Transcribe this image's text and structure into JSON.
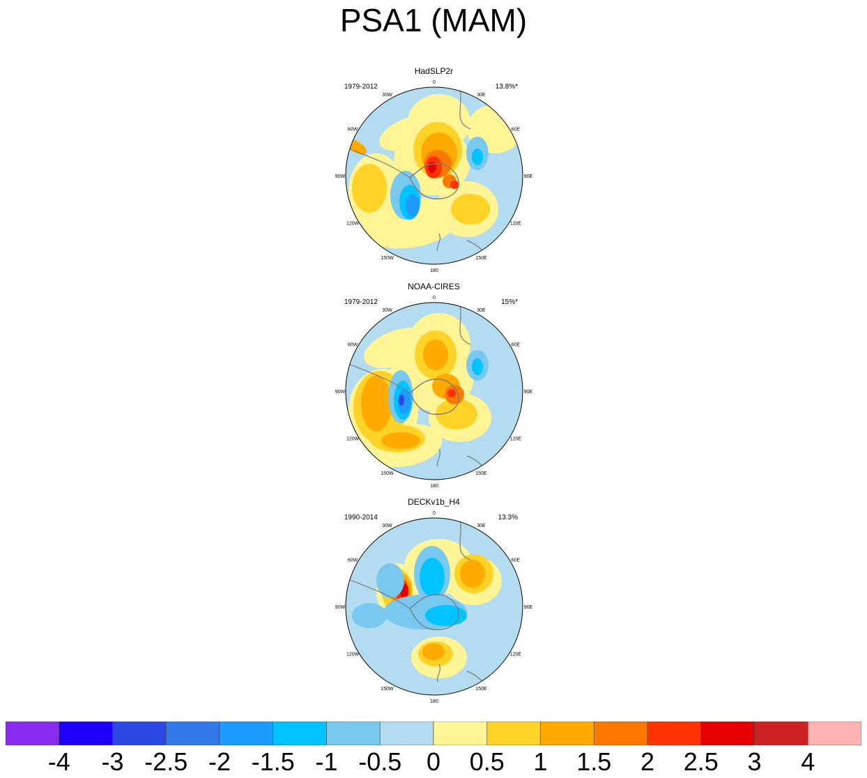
{
  "title": "PSA1 (MAM)",
  "chart_data": {
    "type": "contour-map",
    "projection": "south polar stereographic",
    "panels": [
      {
        "name": "HadSLP2r",
        "period": "1979-2012",
        "variance": "13.8%*"
      },
      {
        "name": "NOAA-CIRES",
        "period": "1979-2012",
        "variance": "15%*"
      },
      {
        "name": "DECKv1b_H4",
        "period": "1990-2014",
        "variance": "13.3%"
      }
    ],
    "longitude_labels": [
      "0",
      "30E",
      "60E",
      "90E",
      "120E",
      "150E",
      "180",
      "150W",
      "120W",
      "90W",
      "60W",
      "30W"
    ],
    "colorbar": {
      "colors": [
        "#8a2cf0",
        "#1e00fa",
        "#2c48e4",
        "#3278ea",
        "#1e9bff",
        "#00c3ff",
        "#78c8f0",
        "#b4dcf0",
        "#fff596",
        "#ffd228",
        "#ffaa00",
        "#ff7800",
        "#ff3200",
        "#e60000",
        "#cd2323",
        "#ffb4b4"
      ],
      "labels": [
        "-4",
        "-3",
        "-2.5",
        "-2",
        "-1.5",
        "-1",
        "-0.5",
        "0",
        "0.5",
        "1",
        "1.5",
        "2",
        "2.5",
        "3",
        "4"
      ]
    }
  }
}
